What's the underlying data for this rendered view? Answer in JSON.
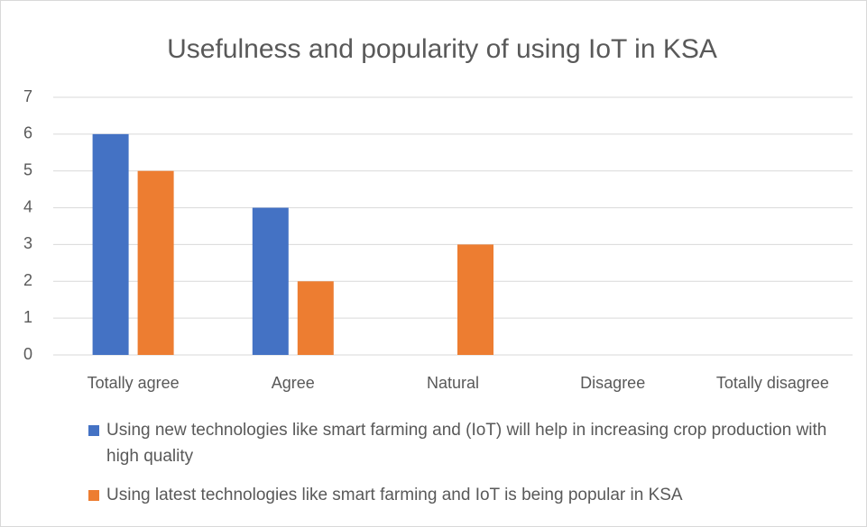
{
  "chart_data": {
    "type": "bar",
    "title": "Usefulness and popularity of using IoT in KSA",
    "categories": [
      "Totally agree",
      "Agree",
      "Natural",
      "Disagree",
      "Totally disagree"
    ],
    "series": [
      {
        "name": "Using new technologies like smart farming and (IoT) will help in increasing crop production with high quality",
        "color": "#4472c4",
        "values": [
          6,
          4,
          0,
          0,
          0
        ]
      },
      {
        "name": "Using latest technologies like smart farming and IoT is being popular in KSA",
        "color": "#ed7d31",
        "values": [
          5,
          2,
          3,
          0,
          0
        ]
      }
    ],
    "ylim": [
      0,
      7
    ],
    "yticks": [
      0,
      1,
      2,
      3,
      4,
      5,
      6,
      7
    ],
    "grid": true,
    "legend": "bottom"
  }
}
